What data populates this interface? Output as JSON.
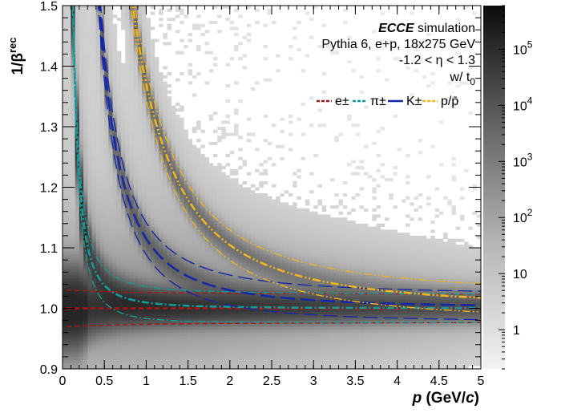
{
  "chart_data": {
    "type": "heatmap",
    "xlabel": "p (GeV/c)",
    "ylabel": "1/β^rec",
    "xlim": [
      0,
      5
    ],
    "ylim": [
      0.9,
      1.5
    ],
    "x_ticks": [
      "0",
      "0.5",
      "1",
      "1.5",
      "2",
      "2.5",
      "3",
      "3.5",
      "4",
      "4.5",
      "5"
    ],
    "y_ticks": [
      "0.9",
      "1.0",
      "1.1",
      "1.2",
      "1.3",
      "1.4",
      "1.5"
    ],
    "colorbar": {
      "scale": "log",
      "range": [
        0.2,
        600000
      ],
      "tick_labels": [
        {
          "value": 1,
          "base": "1",
          "exp": ""
        },
        {
          "value": 10,
          "base": "10",
          "exp": ""
        },
        {
          "value": 100,
          "base": "10",
          "exp": "2"
        },
        {
          "value": 1000,
          "base": "10",
          "exp": "3"
        },
        {
          "value": 10000,
          "base": "10",
          "exp": "4"
        },
        {
          "value": 100000,
          "base": "10",
          "exp": "5"
        }
      ]
    },
    "annotations": {
      "experiment": "ECCE",
      "simulation": "simulation",
      "generator": "Pythia 6, e+p, 18x275 GeV",
      "eta_range": "-1.2 < η < 1.3",
      "t0": "w/ t",
      "t0_sub": "0"
    },
    "series": [
      {
        "name": "e±",
        "mass_gev": 0.000511,
        "color": "#b01515",
        "dash": "6,4",
        "band_width": 0.022
      },
      {
        "name": "π±",
        "mass_gev": 0.1396,
        "color": "#159a9a",
        "dash": "9,3,2,3",
        "band_width": 0.022
      },
      {
        "name": "K±",
        "mass_gev": 0.4937,
        "color": "#1428a8",
        "dash": "18,7",
        "band_width": 0.022
      },
      {
        "name": "p/p̄",
        "mass_gev": 0.9383,
        "color": "#f0b41e",
        "dash": "10,3,2,3,2,3",
        "band_width": 0.022
      }
    ],
    "legend_position": "top-right"
  }
}
